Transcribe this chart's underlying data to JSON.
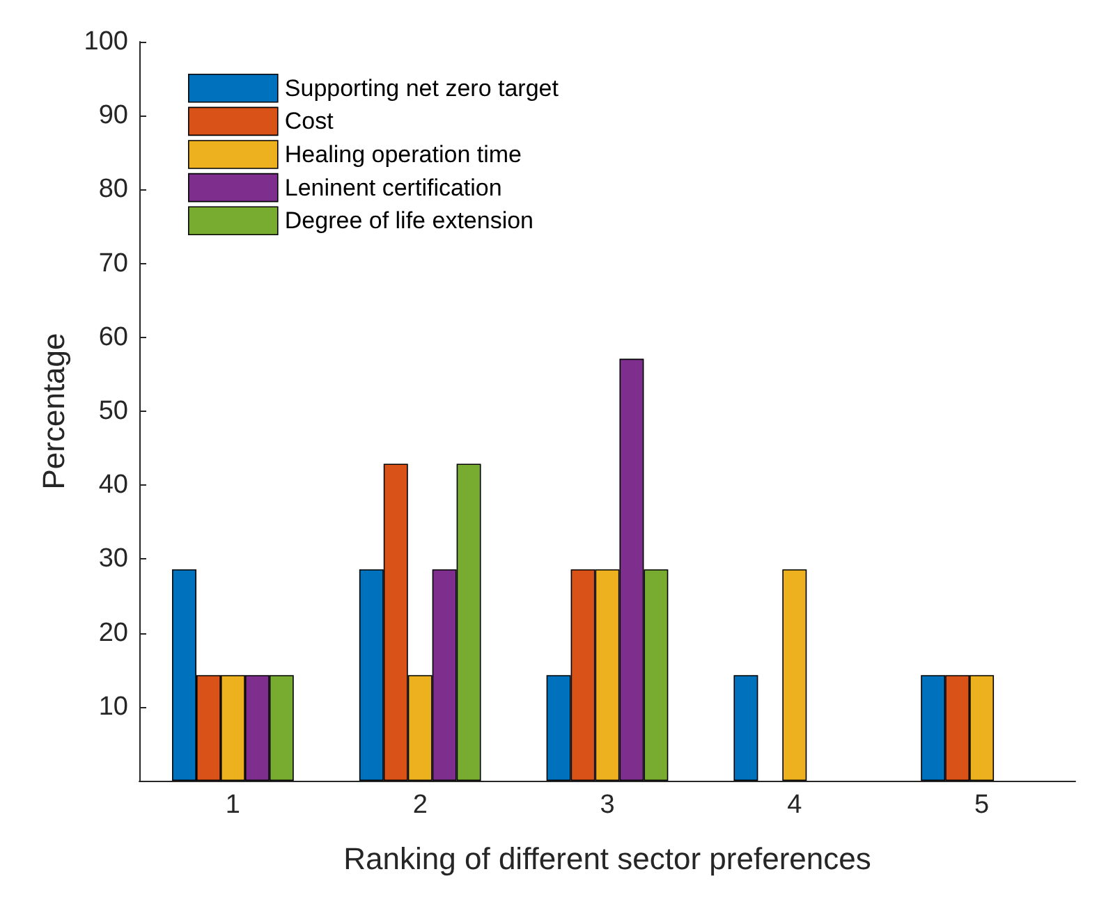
{
  "chart_data": {
    "type": "bar",
    "xlabel": "Ranking of different sector preferences",
    "ylabel": "Percentage",
    "categories": [
      "1",
      "2",
      "3",
      "4",
      "5"
    ],
    "series": [
      {
        "name": "Supporting net zero target",
        "color": "#0072bd",
        "values": [
          28.6,
          28.6,
          14.3,
          14.3,
          14.3
        ]
      },
      {
        "name": "Cost",
        "color": "#d95319",
        "values": [
          14.3,
          42.9,
          28.6,
          null,
          14.3
        ]
      },
      {
        "name": "Healing operation time",
        "color": "#edb120",
        "values": [
          14.3,
          14.3,
          28.6,
          28.6,
          14.3
        ]
      },
      {
        "name": "Leninent certification",
        "color": "#7e2f8e",
        "values": [
          14.3,
          28.6,
          57.1,
          null,
          null
        ]
      },
      {
        "name": "Degree of life extension",
        "color": "#77ac30",
        "values": [
          14.3,
          42.9,
          28.6,
          null,
          null
        ]
      }
    ],
    "ylim": [
      0,
      100
    ],
    "yticks": [
      10,
      20,
      30,
      40,
      50,
      60,
      70,
      80,
      90,
      100
    ],
    "grid": false,
    "legend": "top left"
  }
}
